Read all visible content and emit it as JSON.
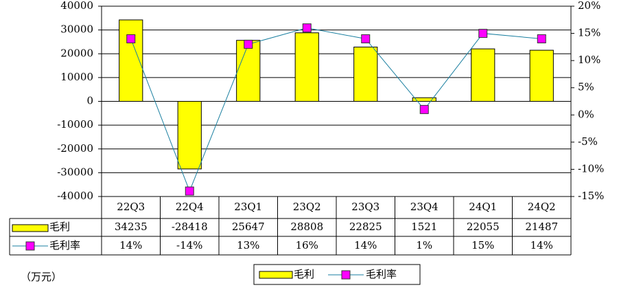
{
  "chart_data": {
    "type": "bar-line",
    "categories": [
      "22Q3",
      "22Q4",
      "23Q1",
      "23Q2",
      "23Q3",
      "23Q4",
      "24Q1",
      "24Q2"
    ],
    "series": [
      {
        "name": "毛利",
        "type": "bar",
        "color": "#ffff00",
        "values": [
          34235,
          -28418,
          25647,
          28808,
          22825,
          1521,
          22055,
          21487
        ]
      },
      {
        "name": "毛利率",
        "type": "line",
        "axis": "y2",
        "color": "#1a7fa0",
        "marker_color": "#ff00ff",
        "values": [
          14,
          -14,
          13,
          16,
          14,
          1,
          15,
          14
        ],
        "value_labels": [
          "14%",
          "-14%",
          "13%",
          "16%",
          "14%",
          "1%",
          "15%",
          "14%"
        ]
      }
    ],
    "ylim": [
      -40000,
      40000
    ],
    "yticks": [
      -40000,
      -30000,
      -20000,
      -10000,
      0,
      10000,
      20000,
      30000,
      40000
    ],
    "y2lim": [
      -15,
      20
    ],
    "y2ticks": [
      {
        "value": -15,
        "label": "-15%"
      },
      {
        "value": -10,
        "label": "-10%"
      },
      {
        "value": -5,
        "label": "-5%"
      },
      {
        "value": 0,
        "label": "0%"
      },
      {
        "value": 5,
        "label": "5%"
      },
      {
        "value": 10,
        "label": "10%"
      },
      {
        "value": 15,
        "label": "15%"
      },
      {
        "value": 20,
        "label": "20%"
      }
    ],
    "unit": "（万元）",
    "grid": true
  }
}
